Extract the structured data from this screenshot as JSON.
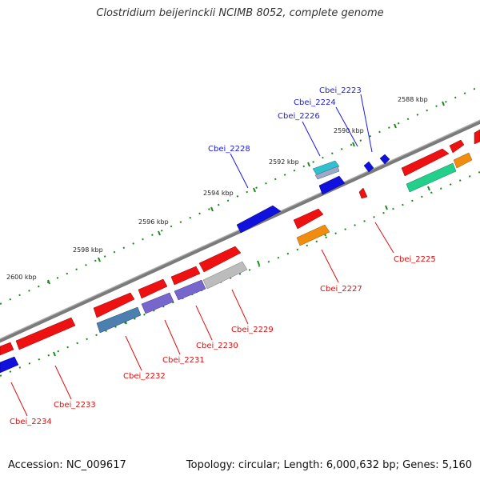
{
  "title": "Clostridium beijerinckii NCIMB 8052, complete genome",
  "footer": {
    "accession": "Accession: NC_009617",
    "info": "Topology: circular; Length: 6,000,632 bp; Genes: 5,160"
  },
  "scale_labels": [
    "2588 kbp",
    "2590 kbp",
    "2592 kbp",
    "2594 kbp",
    "2596 kbp",
    "2598 kbp",
    "2600 kbp"
  ],
  "gene_labels_top": [
    "Cbei_2223",
    "Cbei_2224",
    "Cbei_2226",
    "Cbei_2228"
  ],
  "gene_labels_bottom": [
    "Cbei_2225",
    "Cbei_2227",
    "Cbei_2229",
    "Cbei_2230",
    "Cbei_2231",
    "Cbei_2232",
    "Cbei_2233",
    "Cbei_2234"
  ],
  "colors": {
    "forward_strand_label": "#1a1ae6",
    "reverse_strand_label": "#dd1111",
    "backbone": "#808080",
    "scale_ticks": "#1a8a1a",
    "gene_red": "#ee1111",
    "gene_blue": "#1111dd",
    "gene_purple": "#7766cc",
    "gene_steel": "#4a7fb0",
    "gene_grey": "#bcbcbc",
    "gene_orange": "#f08c10",
    "gene_teal": "#22d08c",
    "gene_cyan": "#30c0d0"
  }
}
